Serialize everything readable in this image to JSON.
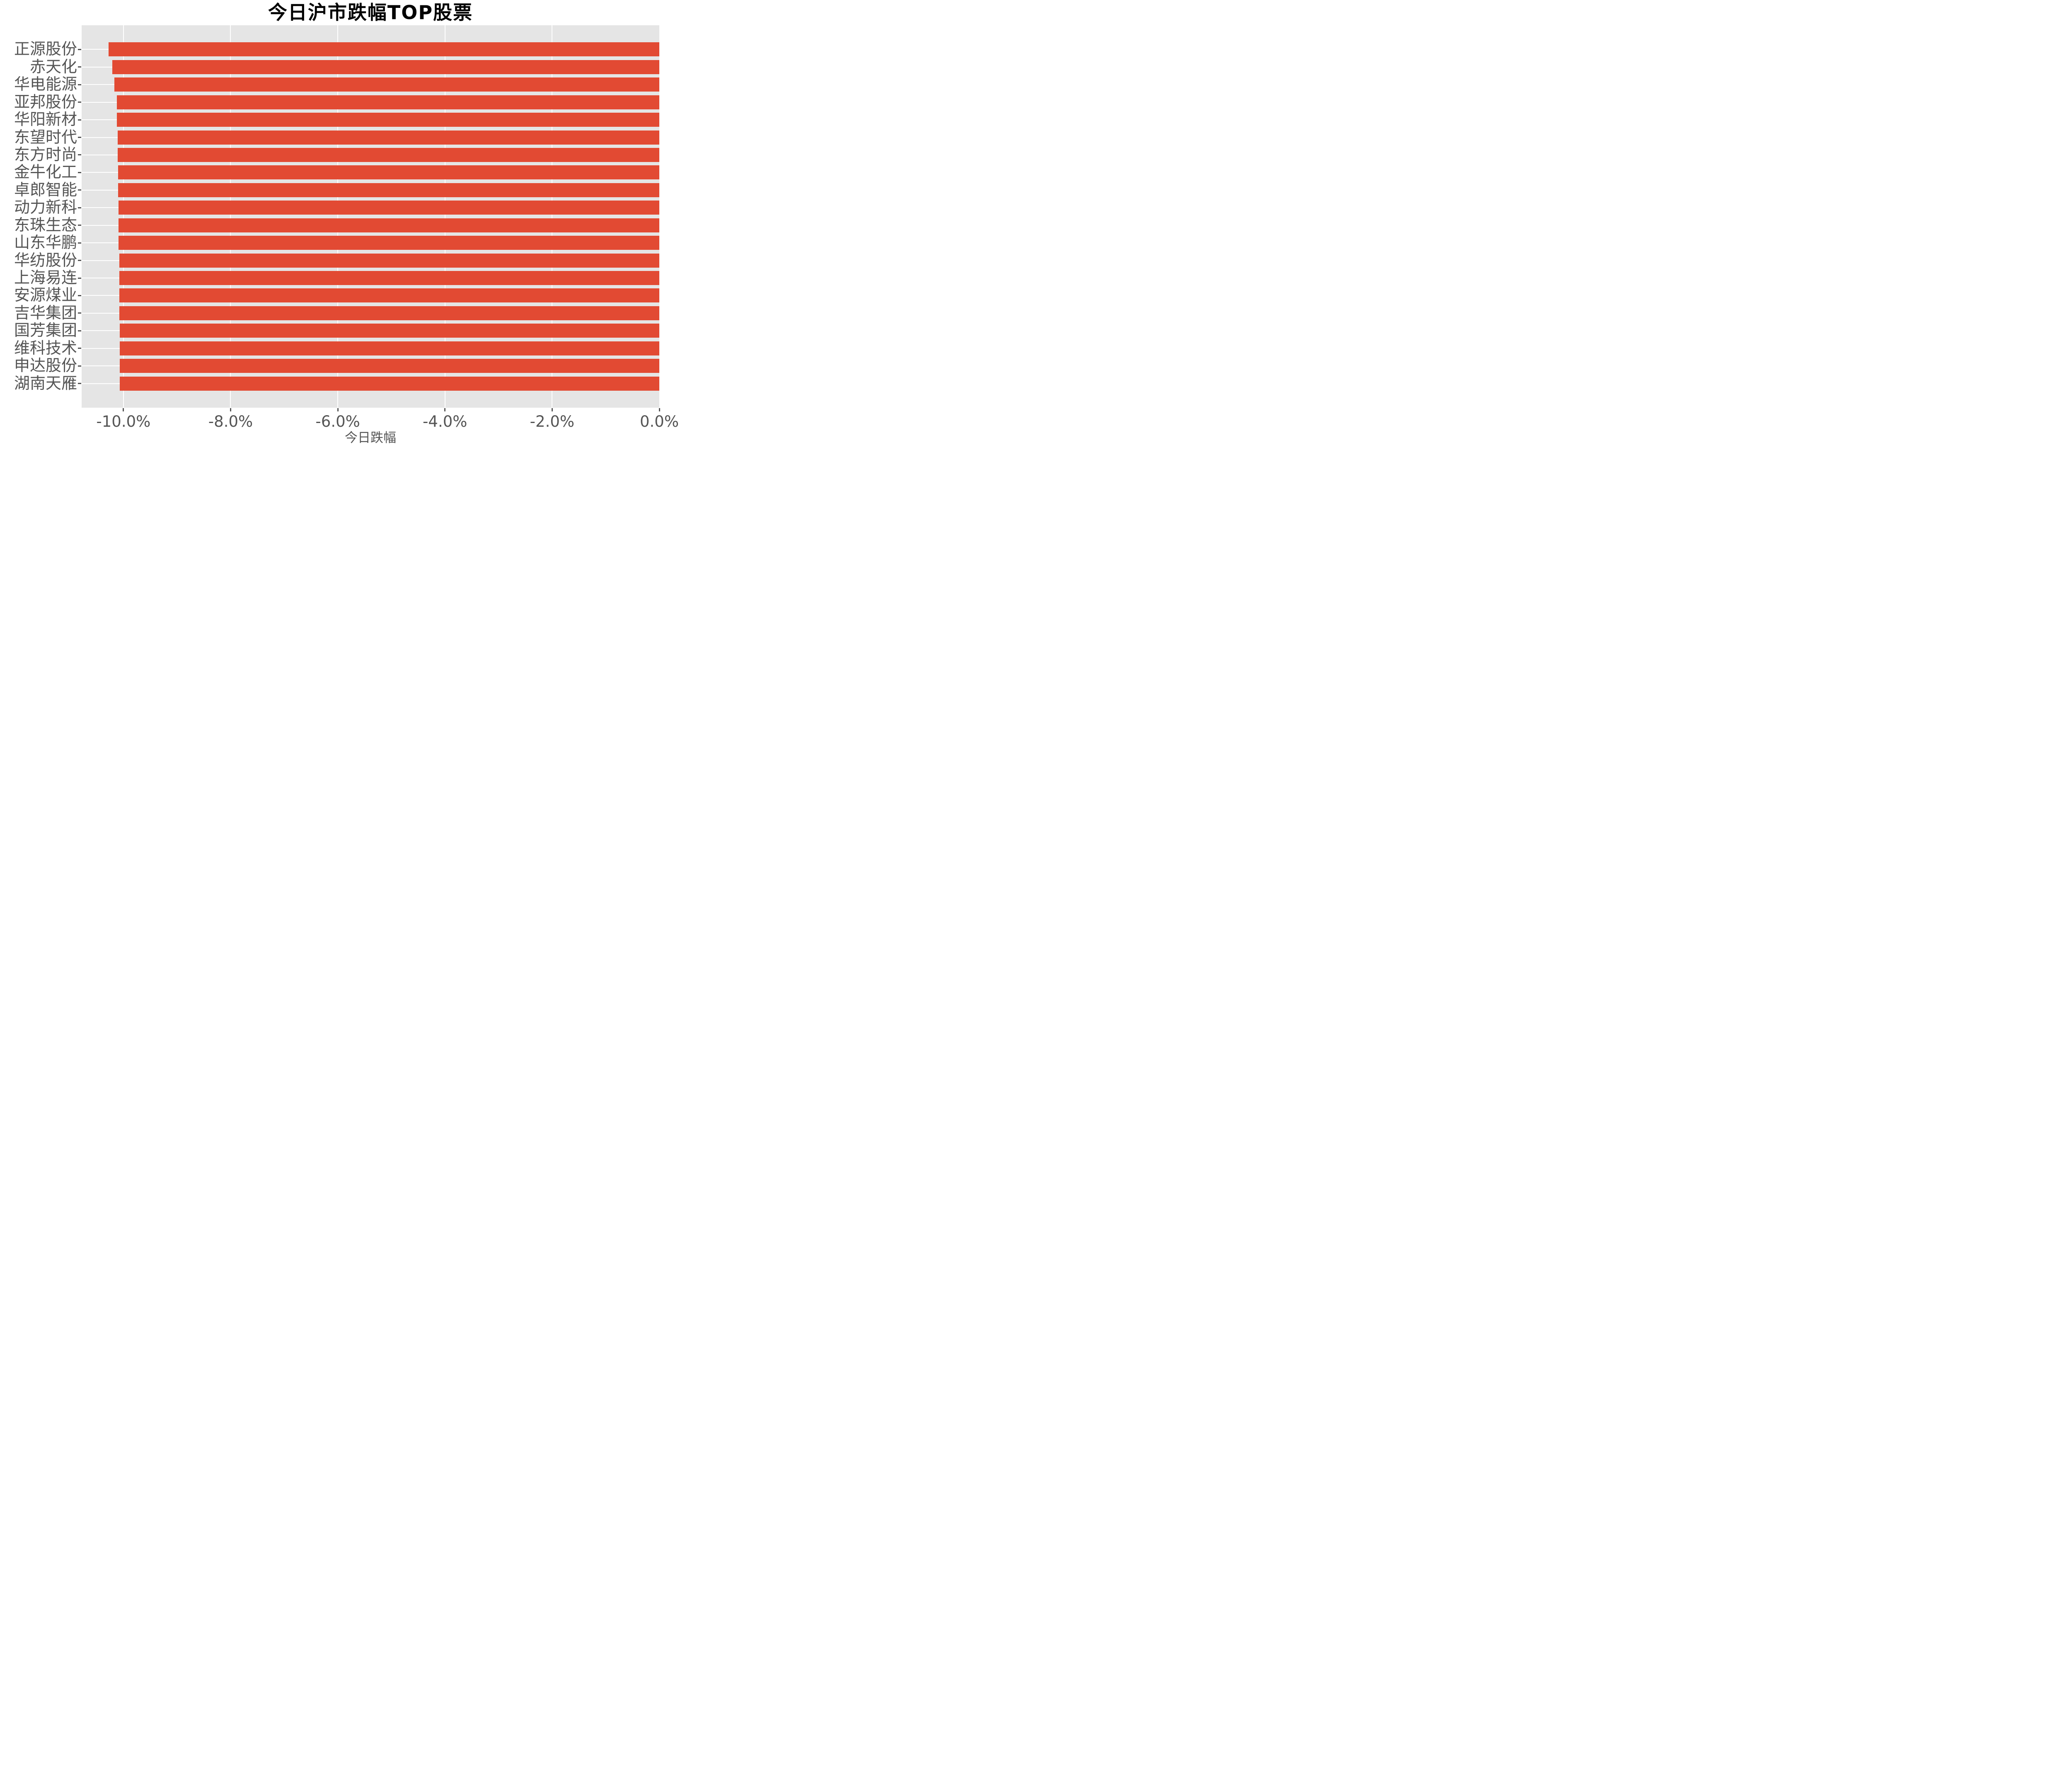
{
  "chart_data": {
    "type": "bar",
    "orientation": "horizontal",
    "title": "今日沪市跌幅TOP股票",
    "xlabel": "今日跌幅",
    "ylabel": "",
    "categories": [
      "正源股份",
      "赤天化",
      "华电能源",
      "亚邦股份",
      "华阳新材",
      "东望时代",
      "东方时尚",
      "金牛化工",
      "卓郎智能",
      "动力新科",
      "东珠生态",
      "山东华鹏",
      "华纺股份",
      "上海易连",
      "安源煤业",
      "吉华集团",
      "国芳集团",
      "维科技术",
      "申达股份",
      "湖南天雁"
    ],
    "values": [
      -10.28,
      -10.21,
      -10.17,
      -10.12,
      -10.12,
      -10.11,
      -10.11,
      -10.1,
      -10.1,
      -10.09,
      -10.09,
      -10.09,
      -10.08,
      -10.08,
      -10.08,
      -10.08,
      -10.07,
      -10.07,
      -10.07,
      -10.07
    ],
    "value_unit": "percent",
    "xlim": [
      -10.78,
      0
    ],
    "x_ticks": [
      -10,
      -8,
      -6,
      -4,
      -2,
      0
    ],
    "x_tick_labels": [
      "-10.0%",
      "-8.0%",
      "-6.0%",
      "-4.0%",
      "-2.0%",
      "0.0%"
    ],
    "grid": true,
    "legend": false,
    "bar_color": "#E24A33",
    "plot_background": "#E5E5E5"
  },
  "colors": {
    "bar": "#E24A33",
    "plot_bg": "#E5E5E5",
    "grid_line": "#FFFFFF",
    "tick_mark": "#555555",
    "tick_text": "#555555",
    "title_text": "#000000",
    "figure_bg": "#FFFFFF"
  }
}
